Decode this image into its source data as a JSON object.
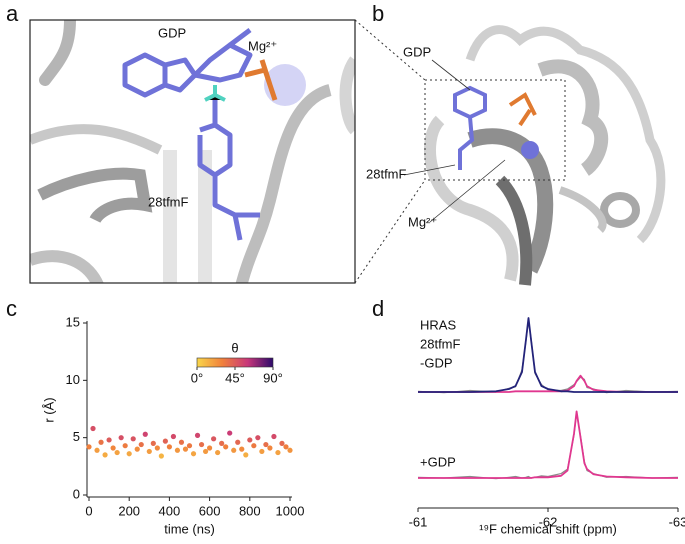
{
  "panel_labels": [
    "a",
    "b",
    "c",
    "d"
  ],
  "structure_a": {
    "labels": [
      "GDP",
      "Mg²⁺",
      "28tfmF"
    ]
  },
  "structure_b": {
    "labels": [
      "GDP",
      "28tfmF",
      "Mg²⁺"
    ]
  },
  "chart_data": [
    {
      "type": "scatter",
      "xlabel": "time (ns)",
      "ylabel": "r (Å)",
      "x": [
        0,
        20,
        40,
        60,
        80,
        100,
        120,
        140,
        160,
        180,
        200,
        220,
        240,
        260,
        280,
        300,
        320,
        340,
        360,
        380,
        400,
        420,
        440,
        460,
        480,
        500,
        520,
        540,
        560,
        580,
        600,
        620,
        640,
        660,
        680,
        700,
        720,
        740,
        760,
        780,
        800,
        820,
        840,
        860,
        880,
        900,
        920,
        940,
        960,
        980,
        1000
      ],
      "values": [
        4.2,
        5.8,
        3.9,
        4.6,
        3.5,
        4.8,
        4.1,
        3.7,
        5.0,
        4.3,
        3.6,
        4.9,
        4.0,
        4.4,
        5.3,
        3.8,
        4.5,
        4.1,
        3.4,
        4.7,
        4.2,
        5.1,
        3.9,
        4.6,
        4.0,
        4.3,
        3.6,
        5.2,
        4.4,
        3.8,
        4.1,
        4.9,
        3.7,
        4.5,
        4.2,
        5.4,
        3.9,
        4.6,
        4.0,
        3.5,
        4.8,
        4.3,
        5.0,
        3.8,
        4.4,
        4.1,
        5.1,
        3.7,
        4.5,
        4.2,
        3.9
      ],
      "color_values": [
        30,
        50,
        20,
        35,
        15,
        45,
        28,
        18,
        50,
        32,
        16,
        48,
        25,
        36,
        55,
        20,
        38,
        27,
        12,
        42,
        30,
        52,
        22,
        36,
        25,
        33,
        17,
        54,
        37,
        21,
        27,
        47,
        19,
        38,
        30,
        58,
        22,
        40,
        26,
        14,
        45,
        33,
        50,
        20,
        37,
        28,
        52,
        18,
        39,
        31,
        23
      ],
      "colorbar": {
        "title": "θ",
        "lim": [
          0,
          90
        ],
        "ticks": [
          {
            "value": 0,
            "label": "0°"
          },
          {
            "value": 45,
            "label": "45°"
          },
          {
            "value": 90,
            "label": "90°"
          }
        ],
        "colors": [
          "#f9d64a",
          "#f0803c",
          "#c8377a",
          "#2d0a6b"
        ]
      },
      "xlim": [
        0,
        1000
      ],
      "xticks": [
        0,
        200,
        400,
        600,
        800,
        1000
      ],
      "ylim": [
        0,
        15
      ],
      "yticks": [
        0,
        5,
        10,
        15
      ]
    },
    {
      "type": "line",
      "xlabel": "¹⁹F chemical shift (ppm)",
      "xlim": [
        -61,
        -63
      ],
      "xticks": [
        -61,
        -62,
        -63
      ],
      "ylim": [
        0,
        1
      ],
      "x": [
        -61,
        -61.2,
        -61.4,
        -61.6,
        -61.7,
        -61.75,
        -61.8,
        -61.83,
        -61.85,
        -61.87,
        -61.9,
        -61.95,
        -62,
        -62.1,
        -62.15,
        -62.2,
        -62.22,
        -62.25,
        -62.28,
        -62.3,
        -62.35,
        -62.45,
        -62.6,
        -62.8,
        -63
      ],
      "spectra": [
        {
          "label": [
            "HRAS",
            "28tfmF",
            "-GDP"
          ],
          "series": [
            {
              "color": "#8a8a8a",
              "values": [
                0.01,
                -0.01,
                0.02,
                0.0,
                0.05,
                0.07,
                0.3,
                0.68,
                0.97,
                0.72,
                0.25,
                0.1,
                0.03,
                0.02,
                0.04,
                0.1,
                0.14,
                0.2,
                0.17,
                0.06,
                0.04,
                -0.01,
                0.02,
                0.0,
                0.01
              ]
            },
            {
              "color": "#e0378f",
              "values": [
                0,
                0,
                0,
                0,
                0,
                0.01,
                0.01,
                0.01,
                0.01,
                0.01,
                0.01,
                0.01,
                0.01,
                0.01,
                0.02,
                0.08,
                0.15,
                0.22,
                0.15,
                0.08,
                0.03,
                0.01,
                0,
                0,
                0
              ]
            },
            {
              "color": "#23237a",
              "values": [
                0,
                0,
                0,
                0.01,
                0.04,
                0.08,
                0.27,
                0.7,
                1.0,
                0.7,
                0.27,
                0.08,
                0.04,
                0.01,
                0.01,
                0,
                0,
                0,
                0,
                0,
                0,
                0,
                0,
                0,
                0
              ]
            }
          ]
        },
        {
          "label": [
            "+GDP"
          ],
          "series": [
            {
              "color": "#8a8a8a",
              "values": [
                0.01,
                0,
                0.02,
                -0.01,
                0.01,
                0.02,
                0,
                0.01,
                0.02,
                0,
                0.01,
                0.03,
                0.02,
                0.06,
                0.12,
                0.58,
                0.88,
                0.57,
                0.22,
                0.1,
                0.06,
                0.01,
                0.02,
                0,
                0.01
              ]
            },
            {
              "color": "#e0378f",
              "values": [
                0,
                0,
                0,
                0,
                0,
                0,
                0,
                0,
                0,
                0,
                0.01,
                0.01,
                0.01,
                0.03,
                0.1,
                0.6,
                0.9,
                0.55,
                0.2,
                0.12,
                0.05,
                0.02,
                0.01,
                0,
                0
              ]
            }
          ]
        }
      ]
    }
  ]
}
